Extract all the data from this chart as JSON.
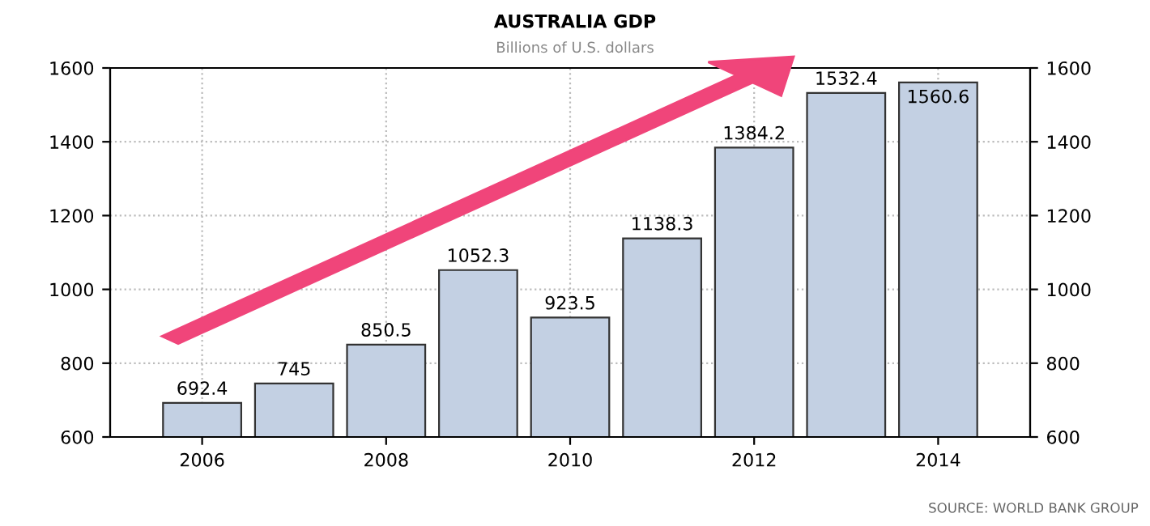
{
  "chart_data": {
    "type": "bar",
    "title": "AUSTRALIA GDP",
    "subtitle": "Billions of U.S. dollars",
    "x": [
      2006,
      2007,
      2008,
      2009,
      2010,
      2011,
      2012,
      2013,
      2014
    ],
    "series": [
      {
        "color": "#c3d0e3",
        "values": [
          692.4,
          745,
          850.5,
          1052.3,
          923.5,
          1138.3,
          1384.2,
          1532.4,
          1560.6
        ]
      }
    ],
    "xlim": [
      2005,
      2015
    ],
    "xticks": [
      2006,
      2008,
      2010,
      2012,
      2014
    ],
    "ylim": [
      600,
      1600
    ],
    "yticks": [
      600,
      800,
      1000,
      1200,
      1400,
      1600
    ],
    "y2lim": [
      600,
      1600
    ],
    "y2ticks": [
      600,
      800,
      1000,
      1200,
      1400,
      1600
    ],
    "data_labels": true,
    "grid": true,
    "annotations": [
      "SOURCE: WORLD BANK GROUP"
    ]
  }
}
